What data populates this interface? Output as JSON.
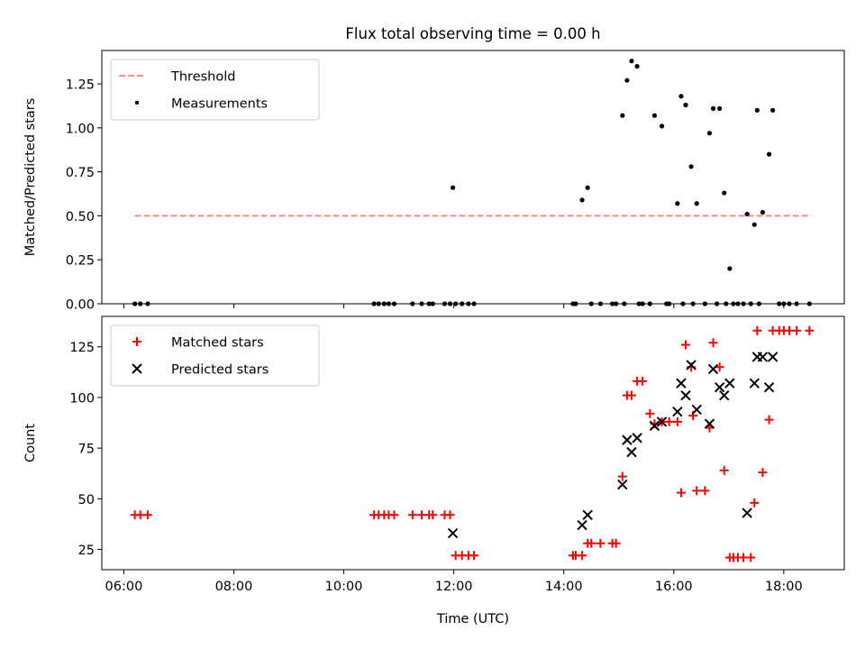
{
  "figure": {
    "title": "Flux total observing time = 0.00 h"
  },
  "chart_data": [
    {
      "type": "scatter",
      "panel": "top",
      "title": "Flux total observing time = 0.00 h",
      "xlabel": "",
      "ylabel": "Matched/Predicted stars",
      "xlim": [
        "05:36",
        "19:06"
      ],
      "ylim": [
        0,
        1.44
      ],
      "yticks": [
        0.0,
        0.25,
        0.5,
        0.75,
        1.0,
        1.25
      ],
      "ytick_labels": [
        "0.00",
        "0.25",
        "0.50",
        "0.75",
        "1.00",
        "1.25"
      ],
      "xticks": [
        "06:00",
        "08:00",
        "10:00",
        "12:00",
        "14:00",
        "16:00",
        "18:00"
      ],
      "legend": {
        "placement": "upper left",
        "entries": [
          "Threshold",
          "Measurements"
        ]
      },
      "threshold": {
        "name": "Threshold",
        "y": 0.5,
        "x_start": "06:12",
        "x_end": "18:30",
        "color": "#ff7f7f",
        "style": "dashed"
      },
      "series": [
        {
          "name": "Measurements",
          "marker": "dot",
          "color": "#000000",
          "points": [
            [
              "06:12",
              0
            ],
            [
              "06:18",
              0
            ],
            [
              "06:26",
              0
            ],
            [
              "10:33",
              0
            ],
            [
              "10:38",
              0
            ],
            [
              "10:44",
              0
            ],
            [
              "10:49",
              0
            ],
            [
              "10:55",
              0
            ],
            [
              "11:15",
              0
            ],
            [
              "11:25",
              0
            ],
            [
              "11:33",
              0
            ],
            [
              "11:37",
              0
            ],
            [
              "11:50",
              0
            ],
            [
              "11:56",
              0
            ],
            [
              "11:59",
              0.66
            ],
            [
              "12:02",
              0
            ],
            [
              "12:09",
              0
            ],
            [
              "12:16",
              0
            ],
            [
              "12:22",
              0
            ],
            [
              "14:10",
              0
            ],
            [
              "14:13",
              0
            ],
            [
              "14:20",
              0.59
            ],
            [
              "14:26",
              0.66
            ],
            [
              "14:30",
              0
            ],
            [
              "14:40",
              0
            ],
            [
              "14:53",
              0
            ],
            [
              "14:57",
              0
            ],
            [
              "15:04",
              1.07
            ],
            [
              "15:06",
              0
            ],
            [
              "15:09",
              1.27
            ],
            [
              "15:14",
              1.38
            ],
            [
              "15:20",
              1.35
            ],
            [
              "15:22",
              0
            ],
            [
              "15:26",
              0
            ],
            [
              "15:34",
              0
            ],
            [
              "15:39",
              1.07
            ],
            [
              "15:47",
              1.01
            ],
            [
              "15:52",
              0
            ],
            [
              "15:55",
              0
            ],
            [
              "16:04",
              0.57
            ],
            [
              "16:08",
              1.18
            ],
            [
              "16:10",
              0
            ],
            [
              "16:13",
              1.13
            ],
            [
              "16:19",
              0.78
            ],
            [
              "16:21",
              0
            ],
            [
              "16:25",
              0.57
            ],
            [
              "16:34",
              0
            ],
            [
              "16:39",
              0.97
            ],
            [
              "16:43",
              1.11
            ],
            [
              "16:47",
              0
            ],
            [
              "16:50",
              1.11
            ],
            [
              "16:55",
              0.63
            ],
            [
              "16:57",
              0
            ],
            [
              "17:01",
              0.2
            ],
            [
              "17:05",
              0
            ],
            [
              "17:10",
              0
            ],
            [
              "17:16",
              0
            ],
            [
              "17:20",
              0.51
            ],
            [
              "17:24",
              0
            ],
            [
              "17:28",
              0.45
            ],
            [
              "17:31",
              1.1
            ],
            [
              "17:33",
              0
            ],
            [
              "17:37",
              0.52
            ],
            [
              "17:44",
              0.85
            ],
            [
              "17:48",
              1.1
            ],
            [
              "17:55",
              0
            ],
            [
              "18:00",
              0
            ],
            [
              "18:06",
              0
            ],
            [
              "18:14",
              0
            ],
            [
              "18:28",
              0
            ]
          ]
        }
      ]
    },
    {
      "type": "scatter",
      "panel": "bottom",
      "xlabel": "Time (UTC)",
      "ylabel": "Count",
      "xlim": [
        "05:36",
        "19:06"
      ],
      "ylim": [
        15,
        140
      ],
      "yticks": [
        25,
        50,
        75,
        100,
        125
      ],
      "xticks": [
        "06:00",
        "08:00",
        "10:00",
        "12:00",
        "14:00",
        "16:00",
        "18:00"
      ],
      "legend": {
        "placement": "upper left",
        "entries": [
          "Matched stars",
          "Predicted stars"
        ]
      },
      "series": [
        {
          "name": "Matched stars",
          "marker": "plus",
          "color": "#ff0000",
          "points": [
            [
              "06:12",
              42
            ],
            [
              "06:18",
              42
            ],
            [
              "06:26",
              42
            ],
            [
              "10:33",
              42
            ],
            [
              "10:38",
              42
            ],
            [
              "10:44",
              42
            ],
            [
              "10:49",
              42
            ],
            [
              "10:55",
              42
            ],
            [
              "11:15",
              42
            ],
            [
              "11:25",
              42
            ],
            [
              "11:33",
              42
            ],
            [
              "11:37",
              42
            ],
            [
              "11:50",
              42
            ],
            [
              "11:56",
              42
            ],
            [
              "12:02",
              22
            ],
            [
              "12:09",
              22
            ],
            [
              "12:16",
              22
            ],
            [
              "12:22",
              22
            ],
            [
              "14:10",
              22
            ],
            [
              "14:13",
              22
            ],
            [
              "14:20",
              22
            ],
            [
              "14:26",
              28
            ],
            [
              "14:30",
              28
            ],
            [
              "14:40",
              28
            ],
            [
              "14:53",
              28
            ],
            [
              "14:57",
              28
            ],
            [
              "15:04",
              61
            ],
            [
              "15:09",
              101
            ],
            [
              "15:14",
              101
            ],
            [
              "15:20",
              108
            ],
            [
              "15:26",
              108
            ],
            [
              "15:34",
              92
            ],
            [
              "15:39",
              87
            ],
            [
              "15:47",
              88
            ],
            [
              "15:55",
              88
            ],
            [
              "16:04",
              88
            ],
            [
              "16:08",
              53
            ],
            [
              "16:13",
              126
            ],
            [
              "16:19",
              115
            ],
            [
              "16:21",
              91
            ],
            [
              "16:25",
              54
            ],
            [
              "16:34",
              54
            ],
            [
              "16:39",
              85
            ],
            [
              "16:43",
              127
            ],
            [
              "16:50",
              115
            ],
            [
              "16:55",
              64
            ],
            [
              "17:01",
              21
            ],
            [
              "17:05",
              21
            ],
            [
              "17:10",
              21
            ],
            [
              "17:16",
              21
            ],
            [
              "17:24",
              21
            ],
            [
              "17:28",
              48
            ],
            [
              "17:31",
              133
            ],
            [
              "17:37",
              63
            ],
            [
              "17:44",
              89
            ],
            [
              "17:48",
              133
            ],
            [
              "17:55",
              133
            ],
            [
              "18:00",
              133
            ],
            [
              "18:06",
              133
            ],
            [
              "18:14",
              133
            ],
            [
              "18:28",
              133
            ]
          ]
        },
        {
          "name": "Predicted stars",
          "marker": "x",
          "color": "#000000",
          "points": [
            [
              "11:59",
              33
            ],
            [
              "14:20",
              37
            ],
            [
              "14:26",
              42
            ],
            [
              "15:04",
              57
            ],
            [
              "15:09",
              79
            ],
            [
              "15:14",
              73
            ],
            [
              "15:20",
              80
            ],
            [
              "15:39",
              86
            ],
            [
              "15:47",
              88
            ],
            [
              "16:04",
              93
            ],
            [
              "16:08",
              107
            ],
            [
              "16:13",
              101
            ],
            [
              "16:19",
              116
            ],
            [
              "16:25",
              94
            ],
            [
              "16:39",
              87
            ],
            [
              "16:43",
              114
            ],
            [
              "16:50",
              105
            ],
            [
              "16:55",
              101
            ],
            [
              "17:01",
              107
            ],
            [
              "17:20",
              43
            ],
            [
              "17:28",
              107
            ],
            [
              "17:31",
              120
            ],
            [
              "17:37",
              120
            ],
            [
              "17:44",
              105
            ],
            [
              "17:48",
              120
            ]
          ]
        }
      ]
    }
  ]
}
